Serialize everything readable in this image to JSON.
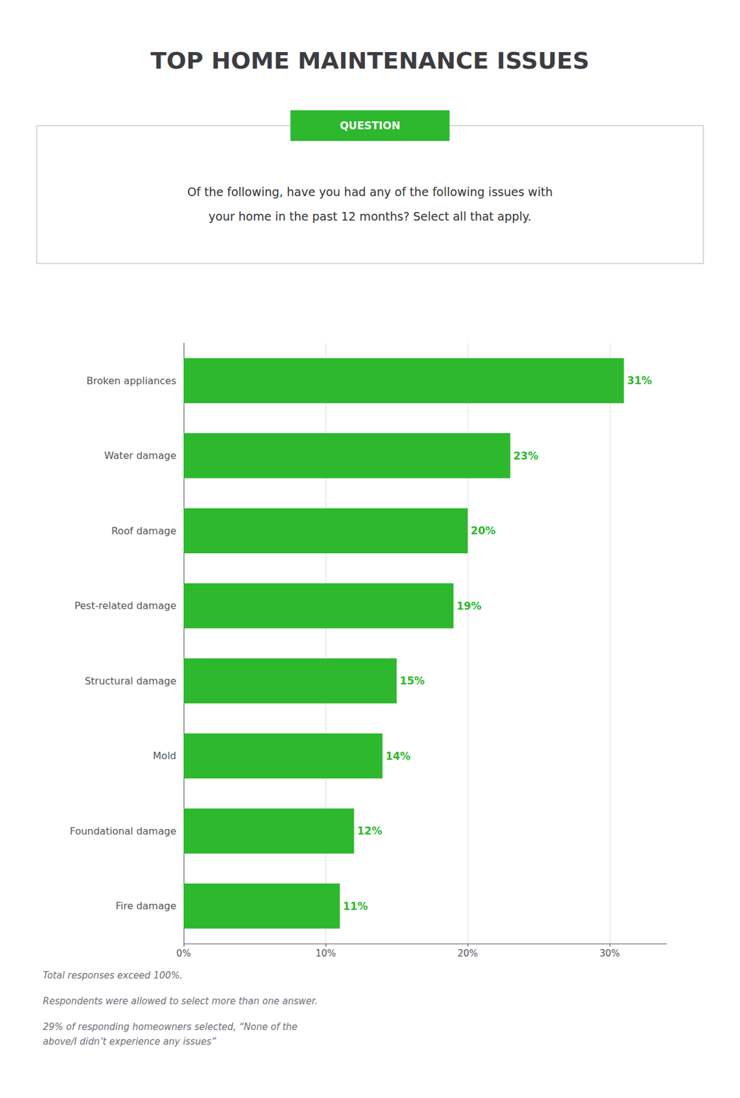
{
  "chart_data": {
    "type": "bar",
    "orientation": "horizontal",
    "title": "TOP HOME MAINTENANCE ISSUES",
    "subtitle": "Of the following, have you had any of the following issues with\nyour home in the past 12 months? Select all that apply.",
    "annotations": [
      "QUESTION",
      "Total responses exceed 100%.",
      "Respondents were allowed to select more than one answer.",
      "29% of responding homeowners selected, “None of the\nabove/I didn’t experience any issues”"
    ],
    "categories": [
      "Broken appliances",
      "Water damage",
      "Roof damage",
      "Pest-related damage",
      "Structural damage",
      "Mold",
      "Foundational damage",
      "Fire damage"
    ],
    "values": [
      31,
      23,
      20,
      19,
      15,
      14,
      12,
      11
    ],
    "value_labels": [
      "31%",
      "23%",
      "20%",
      "19%",
      "15%",
      "14%",
      "12%",
      "11%"
    ],
    "data_labels": true,
    "color": "#2db82d",
    "xlim": [
      0,
      34
    ],
    "xticks": [
      {
        "value": 0,
        "label": "0%"
      },
      {
        "value": 10,
        "label": "10%"
      },
      {
        "value": 20,
        "label": "20%"
      },
      {
        "value": 30,
        "label": "30%"
      }
    ],
    "grid": true
  }
}
